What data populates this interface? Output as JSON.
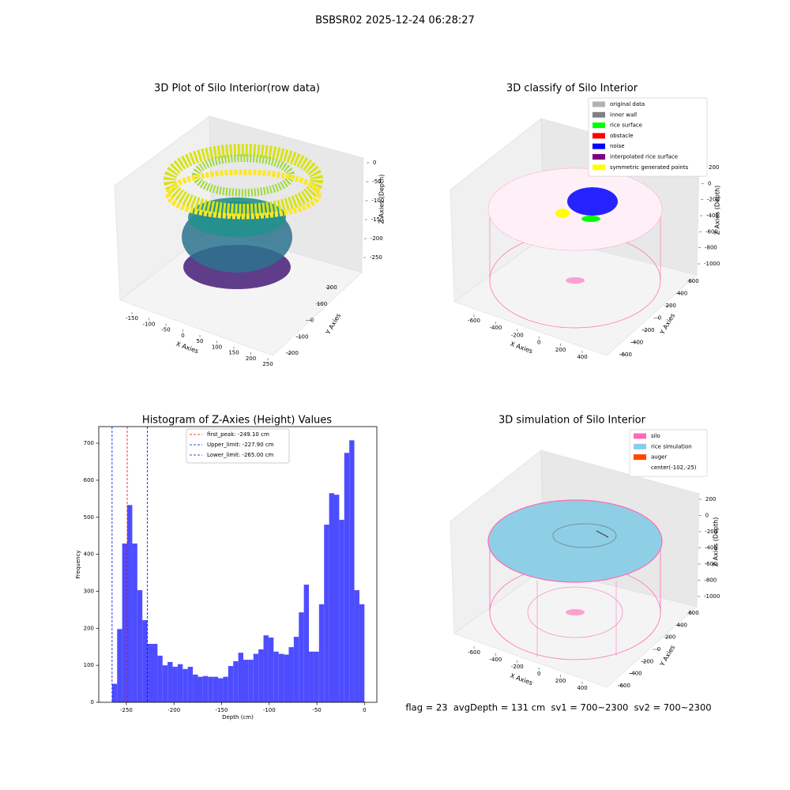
{
  "title": "BSBSR02 2025-12-24 06:28:27",
  "footer": "flag = 23  avgDepth = 131 cm  sv1 = 700~2300  sv2 = 700~2300",
  "chart_data": [
    {
      "type": "scatter3d",
      "title": "3D Plot of Silo Interior(row data)",
      "x_label": "X Axies",
      "y_label": "Y Axies",
      "z_label": "Z Axies (Depth)",
      "xticks": [
        -150,
        -100,
        -50,
        0,
        50,
        100,
        150,
        200,
        250
      ],
      "yticks": [
        -200,
        -100,
        0,
        100,
        200
      ],
      "zticks": [
        -250,
        -200,
        -150,
        -100,
        -50,
        0
      ]
    },
    {
      "type": "scatter3d",
      "title": "3D classify of Silo Interior",
      "x_label": "X Axies",
      "y_label": "Y Axies",
      "z_label": "Z Axies (Depth)",
      "xticks": [
        -600,
        -400,
        -200,
        0,
        200,
        400
      ],
      "yticks": [
        -600,
        -400,
        -200,
        0,
        200,
        400,
        600
      ],
      "zticks": [
        -1000,
        -800,
        -600,
        -400,
        -200,
        0,
        200
      ],
      "legend": [
        {
          "name": "original data",
          "color": "#b3b3b3"
        },
        {
          "name": "inner wall",
          "color": "#808080"
        },
        {
          "name": "rice surface",
          "color": "#00ff00"
        },
        {
          "name": "obstacle",
          "color": "#ff0000"
        },
        {
          "name": "noise",
          "color": "#0000ff"
        },
        {
          "name": "interpolated rice surface",
          "color": "#800080"
        },
        {
          "name": "symmetric generated points",
          "color": "#ffff00"
        }
      ]
    },
    {
      "type": "histogram",
      "title": "Histogram of Z-Axies (Height) Values",
      "x_label": "Depth (cm)",
      "y_label": "Frequency",
      "color": "#4d4dff",
      "bins": [
        -265.0,
        -259.7,
        -254.4,
        -249.1,
        -243.8,
        -238.5,
        -233.2,
        -227.9,
        -222.6,
        -217.3,
        -212.0,
        -206.7,
        -201.4,
        -196.1,
        -190.8,
        -185.5,
        -180.2,
        -174.9,
        -169.6,
        -164.3,
        -159.0,
        -153.7,
        -148.4,
        -143.1,
        -137.8,
        -132.5,
        -127.2,
        -121.9,
        -116.6,
        -111.3,
        -106.0,
        -100.7,
        -95.4,
        -90.1,
        -84.8,
        -79.5,
        -74.2,
        -68.9,
        -63.6,
        -58.3,
        -53.0,
        -47.7,
        -42.4,
        -37.1,
        -31.8,
        -26.5,
        -21.2,
        -15.9,
        -10.6,
        -5.3,
        0.0
      ],
      "counts": [
        50,
        198,
        429,
        533,
        429,
        303,
        222,
        158,
        158,
        126,
        100,
        109,
        96,
        103,
        90,
        96,
        75,
        69,
        71,
        69,
        69,
        65,
        69,
        98,
        111,
        134,
        115,
        115,
        131,
        143,
        181,
        175,
        137,
        131,
        129,
        149,
        177,
        243,
        318,
        137,
        137,
        265,
        480,
        565,
        561,
        493,
        674,
        708,
        303,
        265
      ],
      "xlim": [
        -279,
        13
      ],
      "ylim": [
        0,
        745
      ],
      "xticks": [
        -250,
        -200,
        -150,
        -100,
        -50,
        0
      ],
      "yticks": [
        0,
        100,
        200,
        300,
        400,
        500,
        600,
        700
      ],
      "vlines": [
        {
          "label": "first_peak: -249.10 cm",
          "value": -249.1,
          "color": "#ff0000"
        },
        {
          "label": "Upper_limit: -227.90 cm",
          "value": -227.9,
          "color": "#0000ff"
        },
        {
          "label": "Lower_limit: -265.00 cm",
          "value": -265.0,
          "color": "#0000ff"
        }
      ]
    },
    {
      "type": "scatter3d",
      "title": "3D simulation of Silo Interior",
      "x_label": "X Axies",
      "y_label": "Y Axies",
      "z_label": "Z Axies (Depth)",
      "xticks": [
        -600,
        -400,
        -200,
        0,
        200,
        400
      ],
      "yticks": [
        -600,
        -400,
        -200,
        0,
        200,
        400,
        600
      ],
      "zticks": [
        -1000,
        -800,
        -600,
        -400,
        -200,
        0,
        200
      ],
      "legend": [
        {
          "name": "silo",
          "color": "#ff69b4"
        },
        {
          "name": "rice simulation",
          "color": "#87ceeb"
        },
        {
          "name": "auger",
          "color": "#ff4500"
        },
        {
          "name": "center(-102,-25)"
        }
      ]
    }
  ]
}
